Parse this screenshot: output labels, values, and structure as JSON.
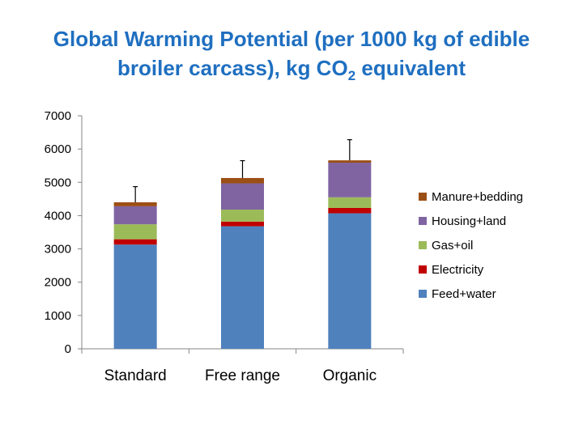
{
  "chart_data": {
    "type": "bar",
    "stacked": true,
    "title_line1": "Global Warming Potential (per 1000 kg of edible",
    "title_line2_pre": "broiler carcass), kg CO",
    "title_sub": "2",
    "title_line2_post": " equivalent",
    "categories": [
      "Standard",
      "Free range",
      "Organic"
    ],
    "ylim": [
      0,
      7000
    ],
    "yticks": [
      "0",
      "1000",
      "2000",
      "3000",
      "4000",
      "5000",
      "6000",
      "7000"
    ],
    "grid": false,
    "legend_position": "right",
    "series": [
      {
        "name": "Feed+water",
        "color": "#4f81bd",
        "values": [
          3130,
          3680,
          4070
        ]
      },
      {
        "name": "Electricity",
        "color": "#c00000",
        "values": [
          160,
          140,
          160
        ]
      },
      {
        "name": "Gas+oil",
        "color": "#9bbb59",
        "values": [
          450,
          360,
          320
        ]
      },
      {
        "name": "Housing+land",
        "color": "#8064a2",
        "values": [
          540,
          790,
          1040
        ]
      },
      {
        "name": "Manure+bedding",
        "color": "#9c4f14",
        "values": [
          120,
          160,
          70
        ]
      }
    ],
    "error_bars": [
      4870,
      5650,
      6280
    ]
  }
}
